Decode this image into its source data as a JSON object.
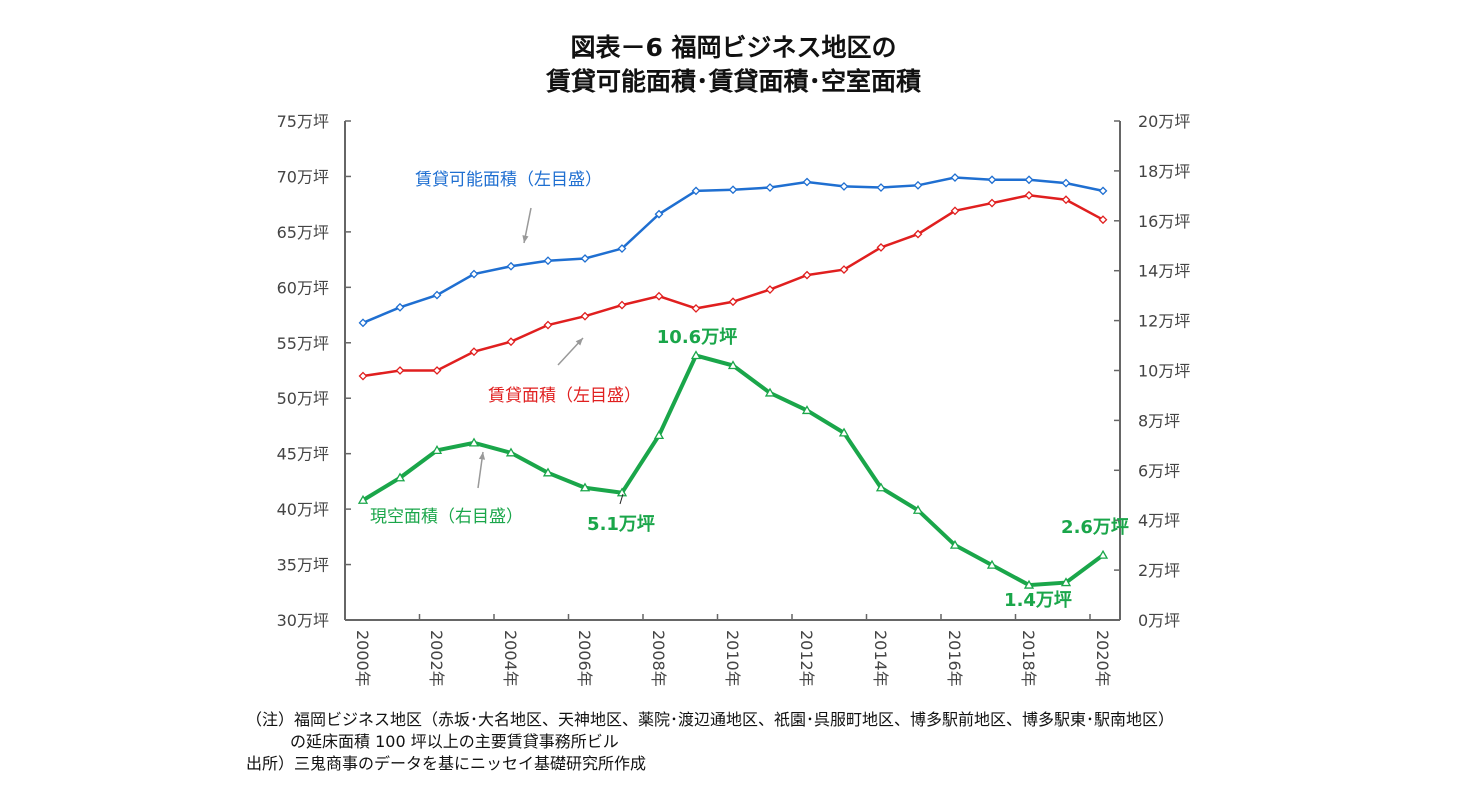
{
  "chart_data": {
    "type": "line",
    "title": [
      "図表－6  福岡ビジネス地区の",
      "賃貸可能面積･賃貸面積･空室面積"
    ],
    "categories": [
      2000,
      2001,
      2002,
      2003,
      2004,
      2005,
      2006,
      2007,
      2008,
      2009,
      2010,
      2011,
      2012,
      2013,
      2014,
      2015,
      2016,
      2017,
      2018,
      2019,
      2020
    ],
    "x_tick_labels": [
      "2000年",
      "2002年",
      "2004年",
      "2006年",
      "2008年",
      "2010年",
      "2012年",
      "2014年",
      "2016年",
      "2018年",
      "2020年"
    ],
    "y_left": {
      "ylim": [
        30,
        75
      ],
      "ticks": [
        "30万坪",
        "35万坪",
        "40万坪",
        "45万坪",
        "50万坪",
        "55万坪",
        "60万坪",
        "65万坪",
        "70万坪",
        "75万坪"
      ]
    },
    "y_right": {
      "ylim": [
        0,
        20
      ],
      "ticks": [
        "0万坪",
        "2万坪",
        "4万坪",
        "6万坪",
        "8万坪",
        "10万坪",
        "12万坪",
        "14万坪",
        "16万坪",
        "18万坪",
        "20万坪"
      ]
    },
    "series": [
      {
        "name": "賃貸可能面積（左目盛）",
        "axis": "left",
        "color": "#1f6fd1",
        "marker": "diamond",
        "values": [
          56.8,
          58.2,
          59.3,
          61.2,
          61.9,
          62.4,
          62.6,
          63.5,
          66.6,
          68.7,
          68.8,
          69.0,
          69.5,
          69.1,
          69.0,
          69.2,
          69.9,
          69.7,
          69.7,
          69.4,
          68.7
        ]
      },
      {
        "name": "賃貸面積（左目盛）",
        "axis": "left",
        "color": "#e01f1f",
        "marker": "diamond",
        "values": [
          52.0,
          52.5,
          52.5,
          54.2,
          55.1,
          56.6,
          57.4,
          58.4,
          59.2,
          58.1,
          58.7,
          59.8,
          61.1,
          61.6,
          63.6,
          64.8,
          66.9,
          67.6,
          68.3,
          67.9,
          66.1
        ]
      },
      {
        "name": "現空面積（右目盛）",
        "axis": "right",
        "color": "#1aa64a",
        "marker": "triangle",
        "values": [
          4.8,
          5.7,
          6.8,
          7.1,
          6.7,
          5.9,
          5.3,
          5.1,
          7.4,
          10.6,
          10.2,
          9.1,
          8.4,
          7.5,
          5.3,
          4.4,
          3.0,
          2.2,
          1.4,
          1.5,
          2.6
        ]
      }
    ],
    "data_labels": [
      {
        "text": "10.6万坪",
        "year": 2009
      },
      {
        "text": "5.1万坪",
        "year": 2007
      },
      {
        "text": "1.4万坪",
        "year": 2018
      },
      {
        "text": "2.6万坪",
        "year": 2020
      }
    ],
    "grid": false,
    "legend": "inline annotations with arrows"
  },
  "notes": [
    "（注）福岡ビジネス地区（赤坂･大名地区、天神地区、薬院･渡辺通地区、祇園･呉服町地区、博多駅前地区、博多駅東･駅南地区）",
    "の延床面積 100 坪以上の主要賃貸事務所ビル",
    "出所）三鬼商事のデータを基にニッセイ基礎研究所作成"
  ]
}
